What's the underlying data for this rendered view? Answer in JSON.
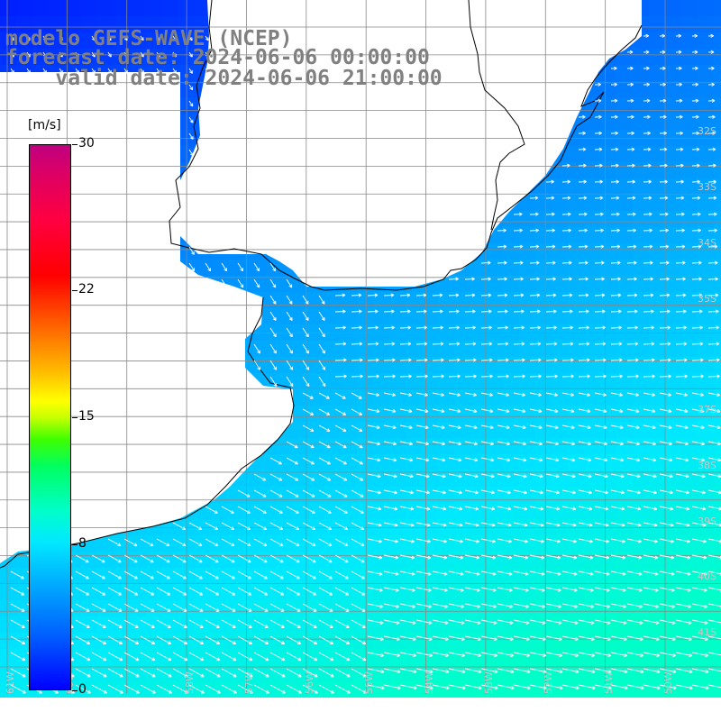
{
  "title": {
    "line1": "modelo GEFS-WAVE (NCEP)",
    "line2": "forecast date: 2024-06-06 00:00:00",
    "line3": "    valid date: 2024-06-06 21:00:00"
  },
  "colorbar": {
    "unit": "[m/s]",
    "ticks": [
      {
        "value": 30,
        "label": "30"
      },
      {
        "value": 22,
        "label": "22"
      },
      {
        "value": 15,
        "label": "15"
      },
      {
        "value": 8,
        "label": "8"
      },
      {
        "value": 0,
        "label": "0"
      }
    ],
    "min": 0,
    "max": 30,
    "colors": [
      "#0000ff",
      "#00a8ff",
      "#00ffc8",
      "#40ff00",
      "#ffff00",
      "#ff8000",
      "#ff0000",
      "#c00080"
    ]
  },
  "map": {
    "lon_range": [
      -61,
      -50
    ],
    "lat_range": [
      -41.5,
      -30
    ],
    "lat_labels": [
      {
        "lat": -32,
        "label": "32S"
      },
      {
        "lat": -33,
        "label": "33S"
      },
      {
        "lat": -34,
        "label": "34S"
      },
      {
        "lat": -35,
        "label": "35S"
      },
      {
        "lat": -37,
        "label": "37S"
      },
      {
        "lat": -38,
        "label": "38S"
      },
      {
        "lat": -39,
        "label": "39S"
      },
      {
        "lat": -40,
        "label": "40S"
      },
      {
        "lat": -41,
        "label": "41S"
      }
    ],
    "lon_labels": [
      {
        "lon": -61,
        "label": "61W"
      },
      {
        "lon": -60,
        "label": "60W"
      },
      {
        "lon": -58,
        "label": "58W"
      },
      {
        "lon": -57,
        "label": "57W"
      },
      {
        "lon": -56,
        "label": "56W"
      },
      {
        "lon": -55,
        "label": "55W"
      },
      {
        "lon": -54,
        "label": "54W"
      },
      {
        "lon": -53,
        "label": "53W"
      },
      {
        "lon": -52,
        "label": "52W"
      },
      {
        "lon": -51,
        "label": "51W"
      },
      {
        "lon": -50,
        "label": "50W"
      }
    ],
    "land_color": "#ffffff",
    "grid_color": "#888888",
    "arrow_color": "#ffffff"
  }
}
